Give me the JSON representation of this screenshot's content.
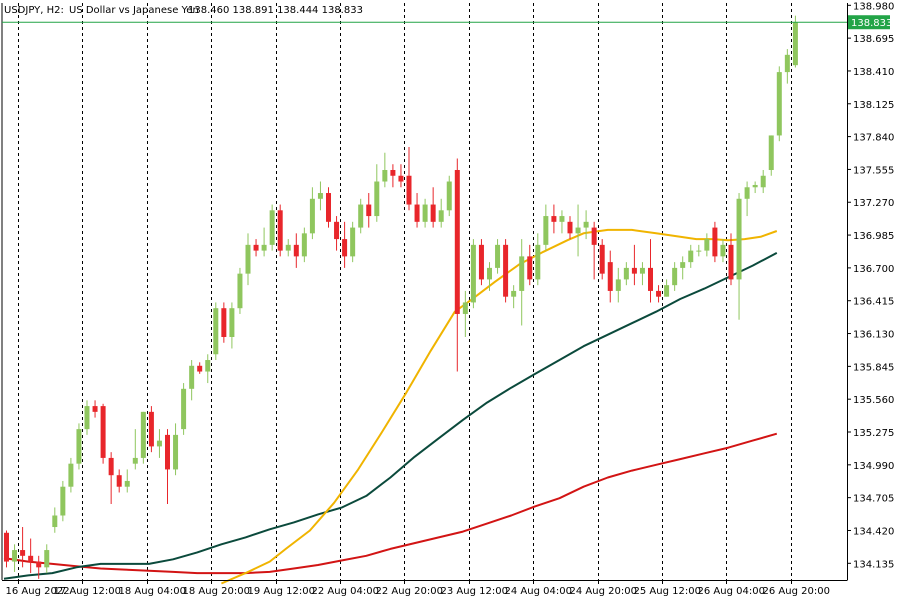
{
  "header": {
    "symbol": "USDJPY, H2:",
    "name": "US Dollar vs Japanese Yen",
    "ohlc": "138.460 138.891 138.444 138.833"
  },
  "colors": {
    "up": "#8fc65e",
    "down": "#e8262b",
    "grid": "#000000",
    "ma_fast": "#f0b400",
    "ma_mid": "#0b4a3c",
    "ma_slow": "#d21414",
    "price_line": "#22a447"
  },
  "chart_data": {
    "type": "candlestick",
    "symbol": "USDJPY",
    "timeframe": "H2",
    "current_price": 138.833,
    "current_price_label": "138.833",
    "ylim": [
      133.99,
      139.0
    ],
    "y_ticks": [
      "138.980",
      "138.695",
      "138.410",
      "138.125",
      "137.840",
      "137.555",
      "137.270",
      "136.985",
      "136.700",
      "136.415",
      "136.130",
      "135.845",
      "135.560",
      "135.275",
      "134.990",
      "134.705",
      "134.420",
      "134.135"
    ],
    "x_labels": [
      "16 Aug 2022",
      "17 Aug 12:00",
      "18 Aug 04:00",
      "18 Aug 20:00",
      "19 Aug 12:00",
      "22 Aug 04:00",
      "22 Aug 20:00",
      "23 Aug 12:00",
      "24 Aug 04:00",
      "24 Aug 20:00",
      "25 Aug 12:00",
      "26 Aug 04:00",
      "26 Aug 20:00"
    ],
    "x_label_index": [
      0,
      8,
      16,
      24,
      32,
      40,
      48,
      56,
      64,
      72,
      80,
      88,
      96
    ],
    "grid": "vertical-dashed",
    "candles": [
      [
        134.4,
        134.42,
        134.1,
        134.15
      ],
      [
        134.15,
        134.3,
        134.06,
        134.25
      ],
      [
        134.25,
        134.45,
        134.1,
        134.2
      ],
      [
        134.2,
        134.35,
        134.05,
        134.15
      ],
      [
        134.15,
        134.2,
        134.0,
        134.1
      ],
      [
        134.1,
        134.3,
        134.05,
        134.25
      ],
      [
        134.45,
        134.62,
        134.4,
        134.55
      ],
      [
        134.55,
        134.85,
        134.5,
        134.8
      ],
      [
        134.8,
        135.05,
        134.75,
        135.0
      ],
      [
        135.0,
        135.35,
        134.95,
        135.3
      ],
      [
        135.3,
        135.55,
        135.25,
        135.5
      ],
      [
        135.5,
        135.55,
        135.4,
        135.45
      ],
      [
        135.5,
        135.52,
        135.0,
        135.05
      ],
      [
        135.05,
        135.1,
        134.65,
        134.9
      ],
      [
        134.9,
        134.95,
        134.75,
        134.8
      ],
      [
        134.8,
        134.95,
        134.75,
        134.85
      ],
      [
        135.0,
        135.3,
        134.95,
        135.05
      ],
      [
        135.05,
        135.45,
        135.0,
        135.45
      ],
      [
        135.45,
        135.5,
        135.1,
        135.15
      ],
      [
        135.15,
        135.3,
        135.05,
        135.2
      ],
      [
        135.25,
        135.3,
        134.65,
        134.95
      ],
      [
        134.95,
        135.35,
        134.9,
        135.25
      ],
      [
        135.3,
        135.7,
        135.25,
        135.65
      ],
      [
        135.65,
        135.9,
        135.55,
        135.85
      ],
      [
        135.85,
        135.88,
        135.78,
        135.8
      ],
      [
        135.8,
        135.95,
        135.7,
        135.9
      ],
      [
        135.95,
        136.4,
        135.9,
        136.35
      ],
      [
        136.35,
        136.4,
        136.05,
        136.1
      ],
      [
        136.1,
        136.4,
        136.0,
        136.35
      ],
      [
        136.35,
        136.7,
        136.3,
        136.65
      ],
      [
        136.65,
        137.0,
        136.55,
        136.9
      ],
      [
        136.9,
        136.95,
        136.8,
        136.85
      ],
      [
        136.85,
        137.05,
        136.8,
        136.9
      ],
      [
        136.9,
        137.25,
        136.85,
        137.2
      ],
      [
        137.2,
        137.25,
        136.8,
        136.85
      ],
      [
        136.85,
        136.95,
        136.8,
        136.9
      ],
      [
        136.9,
        137.0,
        136.7,
        136.8
      ],
      [
        136.8,
        137.05,
        136.75,
        137.0
      ],
      [
        137.0,
        137.4,
        136.95,
        137.3
      ],
      [
        137.3,
        137.45,
        137.2,
        137.35
      ],
      [
        137.35,
        137.4,
        137.05,
        137.1
      ],
      [
        137.1,
        137.15,
        136.85,
        136.95
      ],
      [
        136.95,
        137.1,
        136.7,
        136.8
      ],
      [
        136.8,
        137.1,
        136.75,
        137.05
      ],
      [
        137.05,
        137.3,
        137.0,
        137.25
      ],
      [
        137.25,
        137.35,
        137.05,
        137.15
      ],
      [
        137.15,
        137.6,
        137.1,
        137.45
      ],
      [
        137.45,
        137.7,
        137.4,
        137.55
      ],
      [
        137.55,
        137.6,
        137.4,
        137.5
      ],
      [
        137.5,
        137.6,
        137.4,
        137.45
      ],
      [
        137.5,
        137.75,
        137.2,
        137.25
      ],
      [
        137.25,
        137.35,
        137.05,
        137.1
      ],
      [
        137.1,
        137.3,
        137.05,
        137.25
      ],
      [
        137.25,
        137.4,
        137.05,
        137.1
      ],
      [
        137.1,
        137.3,
        137.05,
        137.2
      ],
      [
        137.2,
        137.5,
        137.15,
        137.45
      ],
      [
        137.55,
        137.65,
        135.8,
        136.3
      ],
      [
        136.3,
        136.5,
        136.1,
        136.4
      ],
      [
        136.4,
        136.95,
        136.35,
        136.9
      ],
      [
        136.9,
        136.95,
        136.55,
        136.6
      ],
      [
        136.6,
        136.75,
        136.5,
        136.7
      ],
      [
        136.7,
        136.95,
        136.65,
        136.9
      ],
      [
        136.9,
        136.95,
        136.4,
        136.45
      ],
      [
        136.45,
        136.55,
        136.35,
        136.5
      ],
      [
        136.5,
        136.95,
        136.2,
        136.8
      ],
      [
        136.8,
        136.9,
        136.55,
        136.6
      ],
      [
        136.6,
        137.0,
        136.55,
        136.9
      ],
      [
        136.9,
        137.25,
        136.85,
        137.15
      ],
      [
        137.15,
        137.25,
        137.0,
        137.1
      ],
      [
        137.1,
        137.2,
        137.0,
        137.15
      ],
      [
        137.1,
        137.15,
        136.95,
        137.0
      ],
      [
        137.0,
        137.25,
        136.8,
        137.05
      ],
      [
        137.05,
        137.2,
        136.95,
        137.1
      ],
      [
        137.05,
        137.1,
        136.6,
        136.9
      ],
      [
        136.9,
        136.95,
        136.6,
        136.65
      ],
      [
        136.75,
        136.85,
        136.4,
        136.5
      ],
      [
        136.5,
        136.7,
        136.4,
        136.6
      ],
      [
        136.6,
        136.75,
        136.55,
        136.7
      ],
      [
        136.7,
        136.9,
        136.55,
        136.65
      ],
      [
        136.65,
        136.75,
        136.55,
        136.7
      ],
      [
        136.7,
        136.95,
        136.4,
        136.5
      ],
      [
        136.5,
        136.55,
        136.4,
        136.45
      ],
      [
        136.45,
        136.6,
        136.45,
        136.55
      ],
      [
        136.55,
        136.75,
        136.5,
        136.7
      ],
      [
        136.7,
        136.8,
        136.6,
        136.75
      ],
      [
        136.75,
        136.9,
        136.7,
        136.85
      ],
      [
        136.85,
        136.9,
        136.8,
        136.85
      ],
      [
        136.85,
        137.0,
        136.8,
        136.95
      ],
      [
        137.05,
        137.1,
        136.75,
        136.8
      ],
      [
        136.8,
        136.95,
        136.75,
        136.9
      ],
      [
        136.9,
        137.0,
        136.55,
        136.6
      ],
      [
        136.6,
        137.35,
        136.25,
        137.3
      ],
      [
        137.3,
        137.45,
        137.15,
        137.4
      ],
      [
        137.4,
        137.45,
        137.35,
        137.42
      ],
      [
        137.4,
        137.55,
        137.35,
        137.5
      ],
      [
        137.55,
        137.85,
        137.5,
        137.85
      ],
      [
        137.85,
        138.45,
        137.8,
        138.4
      ],
      [
        138.4,
        138.6,
        138.3,
        138.55
      ],
      [
        138.46,
        138.89,
        138.44,
        138.833
      ]
    ],
    "ma_fast": [
      [
        27,
        133.96
      ],
      [
        30,
        134.05
      ],
      [
        33,
        134.15
      ],
      [
        35,
        134.26
      ],
      [
        38,
        134.42
      ],
      [
        41,
        134.66
      ],
      [
        44,
        134.95
      ],
      [
        47,
        135.28
      ],
      [
        50,
        135.62
      ],
      [
        53,
        135.98
      ],
      [
        56,
        136.32
      ],
      [
        58,
        136.42
      ],
      [
        61,
        136.58
      ],
      [
        64,
        136.73
      ],
      [
        67,
        136.84
      ],
      [
        70,
        136.94
      ],
      [
        72,
        137.0
      ],
      [
        75,
        137.03
      ],
      [
        78,
        137.03
      ],
      [
        81,
        137.0
      ],
      [
        84,
        136.97
      ],
      [
        86,
        136.95
      ],
      [
        88,
        136.95
      ],
      [
        90,
        136.94
      ],
      [
        92,
        136.95
      ],
      [
        94,
        136.97
      ],
      [
        96,
        137.02
      ]
    ],
    "ma_mid": [
      [
        0,
        134.0
      ],
      [
        3,
        134.03
      ],
      [
        6,
        134.05
      ],
      [
        9,
        134.1
      ],
      [
        12,
        134.13
      ],
      [
        15,
        134.13
      ],
      [
        18,
        134.13
      ],
      [
        21,
        134.17
      ],
      [
        24,
        134.23
      ],
      [
        27,
        134.3
      ],
      [
        30,
        134.36
      ],
      [
        33,
        134.43
      ],
      [
        36,
        134.49
      ],
      [
        39,
        134.56
      ],
      [
        42,
        134.62
      ],
      [
        45,
        134.72
      ],
      [
        48,
        134.88
      ],
      [
        51,
        135.06
      ],
      [
        54,
        135.22
      ],
      [
        57,
        135.38
      ],
      [
        60,
        135.53
      ],
      [
        63,
        135.66
      ],
      [
        66,
        135.78
      ],
      [
        69,
        135.9
      ],
      [
        72,
        136.02
      ],
      [
        75,
        136.12
      ],
      [
        78,
        136.22
      ],
      [
        81,
        136.32
      ],
      [
        84,
        136.43
      ],
      [
        87,
        136.52
      ],
      [
        90,
        136.62
      ],
      [
        93,
        136.72
      ],
      [
        96,
        136.83
      ]
    ],
    "ma_slow": [
      [
        0,
        134.18
      ],
      [
        3,
        134.15
      ],
      [
        6,
        134.13
      ],
      [
        9,
        134.11
      ],
      [
        12,
        134.09
      ],
      [
        15,
        134.08
      ],
      [
        18,
        134.07
      ],
      [
        21,
        134.06
      ],
      [
        24,
        134.05
      ],
      [
        27,
        134.05
      ],
      [
        30,
        134.05
      ],
      [
        33,
        134.06
      ],
      [
        36,
        134.09
      ],
      [
        39,
        134.12
      ],
      [
        42,
        134.16
      ],
      [
        45,
        134.2
      ],
      [
        48,
        134.26
      ],
      [
        51,
        134.31
      ],
      [
        54,
        134.36
      ],
      [
        57,
        134.41
      ],
      [
        60,
        134.48
      ],
      [
        63,
        134.55
      ],
      [
        66,
        134.63
      ],
      [
        69,
        134.7
      ],
      [
        72,
        134.8
      ],
      [
        75,
        134.88
      ],
      [
        78,
        134.94
      ],
      [
        81,
        134.99
      ],
      [
        84,
        135.04
      ],
      [
        87,
        135.09
      ],
      [
        90,
        135.14
      ],
      [
        93,
        135.2
      ],
      [
        96,
        135.26
      ]
    ]
  }
}
